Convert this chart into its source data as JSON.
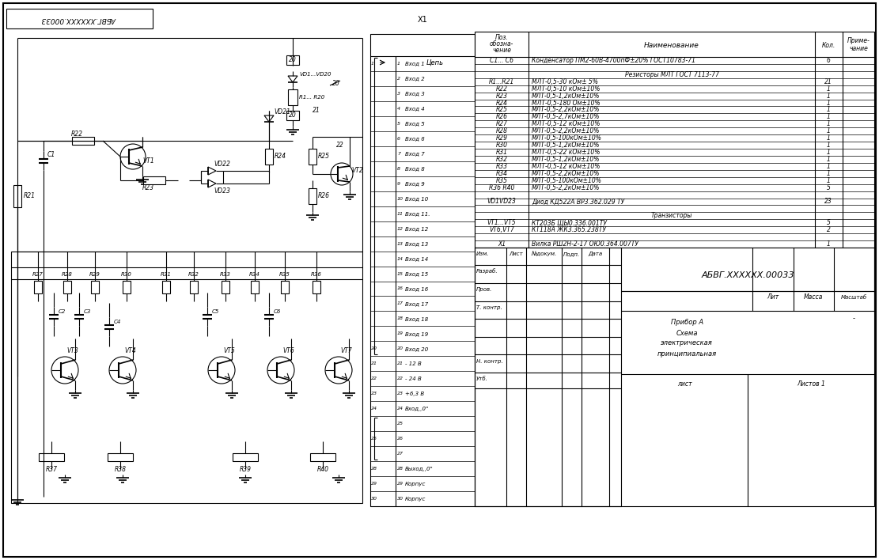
{
  "bg_color": "#ffffff",
  "line_color": "#000000",
  "title_stamp": "АБВГ.XXXXXX.00033",
  "connector_rows": [
    {
      "pin": "1",
      "net": "Вход 1"
    },
    {
      "pin": "2",
      "net": "Вход 2"
    },
    {
      "pin": "3",
      "net": "Вход 3"
    },
    {
      "pin": "4",
      "net": "Вход 4"
    },
    {
      "pin": "5",
      "net": "Вход 5"
    },
    {
      "pin": "6",
      "net": "Вход 6"
    },
    {
      "pin": "7",
      "net": "Вход 7"
    },
    {
      "pin": "8",
      "net": "Вход 8"
    },
    {
      "pin": "9",
      "net": "Вход 9"
    },
    {
      "pin": "10",
      "net": "Вход 10"
    },
    {
      "pin": "11",
      "net": "Вход 11."
    },
    {
      "pin": "12",
      "net": "Вход 12"
    },
    {
      "pin": "13",
      "net": "Вход 13"
    },
    {
      "pin": "14",
      "net": "Вход 14"
    },
    {
      "pin": "15",
      "net": "Вход 15"
    },
    {
      "pin": "16",
      "net": "Вход 16"
    },
    {
      "pin": "17",
      "net": "Вход 17"
    },
    {
      "pin": "18",
      "net": "Вход 18"
    },
    {
      "pin": "19",
      "net": "Вход 19"
    },
    {
      "pin": "20",
      "net": "Вход 20"
    },
    {
      "pin": "21",
      "net": "- 12 В"
    },
    {
      "pin": "22",
      "net": "- 24 В"
    },
    {
      "pin": "23",
      "net": "+6,3 В"
    },
    {
      "pin": "24",
      "net": "Вход,,0\""
    },
    {
      "pin": "25",
      "net": ""
    },
    {
      "pin": "26",
      "net": ""
    },
    {
      "pin": "27",
      "net": ""
    },
    {
      "pin": "28",
      "net": "Выход,,0\""
    },
    {
      "pin": "29",
      "net": "Корпус"
    },
    {
      "pin": "30",
      "net": "Корпус"
    }
  ],
  "bom_rows": [
    {
      "pos": "C1... C6",
      "name": "Конденсатор ПМ2-60В-4700пФ±20% ГОСТ10783-71",
      "qty": "6",
      "hdr": false
    },
    {
      "pos": "",
      "name": "",
      "qty": "",
      "hdr": false
    },
    {
      "pos": "",
      "name": "Резисторы МЛТ ГОСТ 7113-77",
      "qty": "",
      "hdr": true
    },
    {
      "pos": "R1...R21",
      "name": "МЛТ-0,5-30 кОм± 5%",
      "qty": "21",
      "hdr": false
    },
    {
      "pos": "R22",
      "name": "МЛТ-0,5-10 кОм±10%",
      "qty": "1",
      "hdr": false
    },
    {
      "pos": "R23",
      "name": "МЛТ-0,5-1,2кОм±10%",
      "qty": "1",
      "hdr": false
    },
    {
      "pos": "R24",
      "name": "МЛТ-0,5-180 Ом±10%",
      "qty": "1",
      "hdr": false
    },
    {
      "pos": "R25",
      "name": "МЛТ-0,5-2,2кОм±10%",
      "qty": "1",
      "hdr": false
    },
    {
      "pos": "R26",
      "name": "МЛТ-0,5-2,7кОм±10%",
      "qty": "1",
      "hdr": false
    },
    {
      "pos": "R27",
      "name": "МЛТ-0,5-12 кОм±10%",
      "qty": "1",
      "hdr": false
    },
    {
      "pos": "R28",
      "name": "МЛТ-0,5-2,2кОм±10%",
      "qty": "1",
      "hdr": false
    },
    {
      "pos": "R29",
      "name": "МЛТ-0,5-100кОм±10%",
      "qty": "1",
      "hdr": false
    },
    {
      "pos": "R30",
      "name": "МЛТ-0,5-1,2кОм±10%",
      "qty": "1",
      "hdr": false
    },
    {
      "pos": "R31",
      "name": "МЛТ-0,5-22 кОм±10%",
      "qty": "1",
      "hdr": false
    },
    {
      "pos": "R32",
      "name": "МЛТ-0,5-1,2кОм±10%",
      "qty": "1",
      "hdr": false
    },
    {
      "pos": "R33",
      "name": "МЛТ-0,5-12 кОм±10%",
      "qty": "1",
      "hdr": false
    },
    {
      "pos": "R34",
      "name": "МЛТ-0,5-2,2кОм±10%",
      "qty": "1",
      "hdr": false
    },
    {
      "pos": "R35",
      "name": "МЛТ-0,5-100кОм±10%",
      "qty": "1",
      "hdr": false
    },
    {
      "pos": "R36 R40",
      "name": "МЛТ-0,5-2,2кОм±10%",
      "qty": "5",
      "hdr": false
    },
    {
      "pos": "",
      "name": "",
      "qty": "",
      "hdr": false
    },
    {
      "pos": "VD1VD23",
      "name": "Диод КД522А ВР3.362.029 ТУ",
      "qty": "23",
      "hdr": false
    },
    {
      "pos": "",
      "name": "",
      "qty": "",
      "hdr": false
    },
    {
      "pos": "",
      "name": "Транзисторы",
      "qty": "",
      "hdr": true
    },
    {
      "pos": "VT1...VT5",
      "name": "КТ203Б ЩЫ0.336.001ТУ",
      "qty": "5",
      "hdr": false
    },
    {
      "pos": "VT6,VT7",
      "name": "КТ118А ЖК3.365.238ТУ",
      "qty": "2",
      "hdr": false
    },
    {
      "pos": "",
      "name": "",
      "qty": "",
      "hdr": false
    },
    {
      "pos": "X1",
      "name": "Вилка РШ2Н-2-17 ОЮ0.364.007ТУ",
      "qty": "1",
      "hdr": false
    }
  ]
}
